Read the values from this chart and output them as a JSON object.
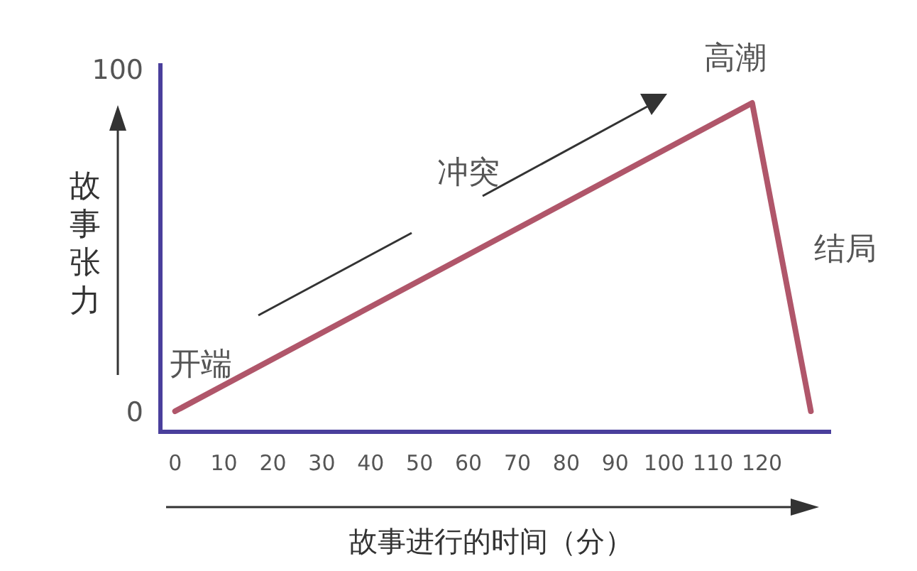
{
  "chart_data": {
    "type": "line",
    "xlabel": "故事进行的时间（分）",
    "ylabel": "故事张力",
    "x": [
      0,
      118,
      130
    ],
    "series": [
      {
        "color": "#b0566a",
        "values": [
          0,
          90,
          0
        ]
      }
    ],
    "xlim": [
      -3,
      134
    ],
    "ylim": [
      -6,
      101
    ],
    "xticks": [
      0,
      10,
      20,
      30,
      40,
      50,
      60,
      70,
      80,
      90,
      100,
      110,
      120
    ],
    "yticks": [
      0,
      100
    ],
    "grid": false,
    "legend": false,
    "marker": "none",
    "line_style": "solid",
    "annotations": [
      {
        "text": "开端",
        "x": 0,
        "y": 0
      },
      {
        "text": "冲突",
        "x": 60,
        "y": 46
      },
      {
        "text": "高潮",
        "x": 118,
        "y": 90
      },
      {
        "text": "结局",
        "x": 124,
        "y": 45
      }
    ]
  }
}
